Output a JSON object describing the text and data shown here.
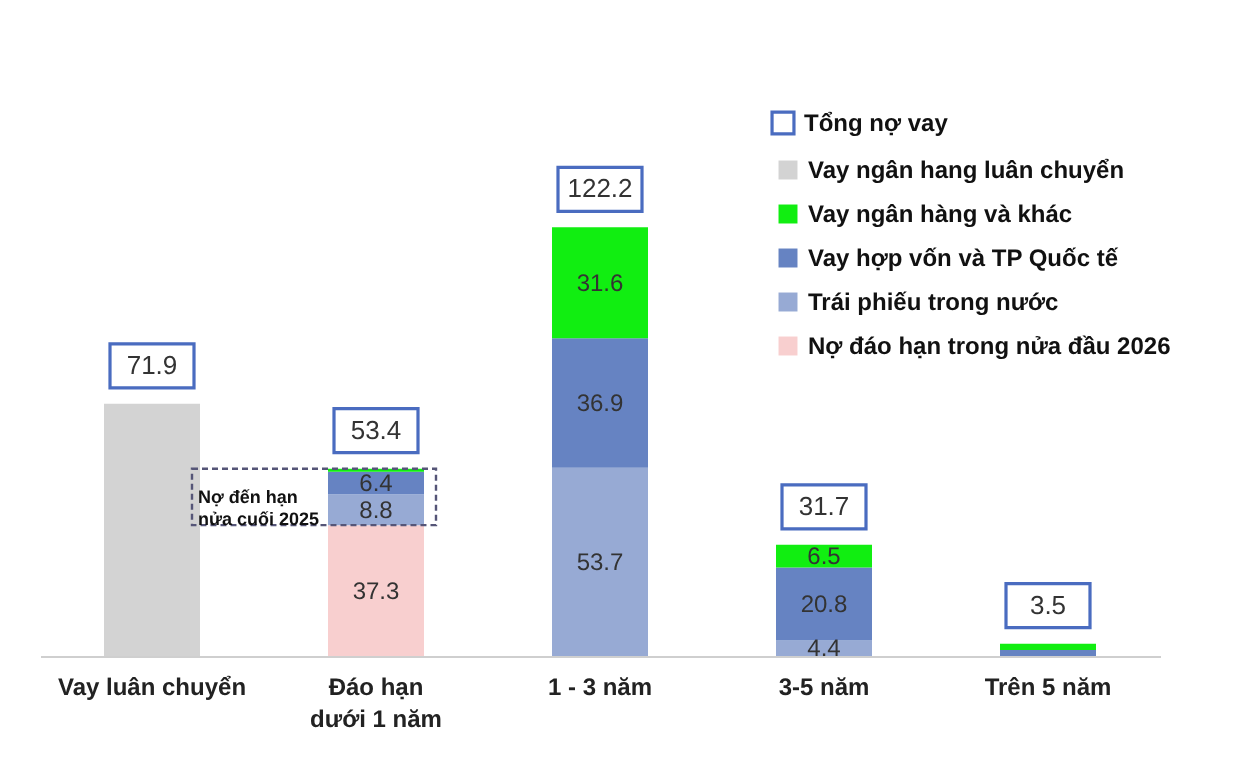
{
  "chart_data": {
    "type": "bar",
    "stacked": true,
    "categories": [
      "Vay luân chuyển",
      "Đáo hạn\ndưới 1 năm",
      "1 - 3 năm",
      "3-5 năm",
      "Trên 5 năm"
    ],
    "series": [
      {
        "name": "Nợ đáo hạn trong nửa đầu 2026",
        "color": "#f8cfcf",
        "values": [
          null,
          37.3,
          null,
          null,
          null
        ],
        "value_labels": [
          null,
          "37.3",
          null,
          null,
          null
        ]
      },
      {
        "name": "Trái phiếu trong nước",
        "color": "#97aad4",
        "values": [
          null,
          8.8,
          53.7,
          4.4,
          null
        ],
        "value_labels": [
          null,
          "8.8",
          "53.7",
          "4.4",
          null
        ]
      },
      {
        "name": "Vay hợp vốn và TP Quốc tế",
        "color": "#6683c2",
        "values": [
          null,
          6.4,
          36.9,
          20.8,
          1.7
        ],
        "value_labels": [
          null,
          "6.4",
          "36.9",
          "20.8",
          null
        ]
      },
      {
        "name": "Vay ngân hàng và khác",
        "color": "#11ee11",
        "values": [
          null,
          0.9,
          31.6,
          6.5,
          1.8
        ],
        "value_labels": [
          null,
          null,
          "31.6",
          "6.5",
          null
        ]
      },
      {
        "name": "Vay ngân hang luân chuyển",
        "color": "#d3d3d3",
        "values": [
          71.9,
          null,
          null,
          null,
          null
        ],
        "value_labels": [
          null,
          null,
          null,
          null,
          null
        ]
      }
    ],
    "totals": [
      "71.9",
      "53.4",
      "122.2",
      "31.7",
      "3.5"
    ],
    "legend_title": "Tổng nợ vay",
    "legend": "top right",
    "annotations": [
      "Nợ đến hạn\nnửa cuối 2025"
    ]
  }
}
